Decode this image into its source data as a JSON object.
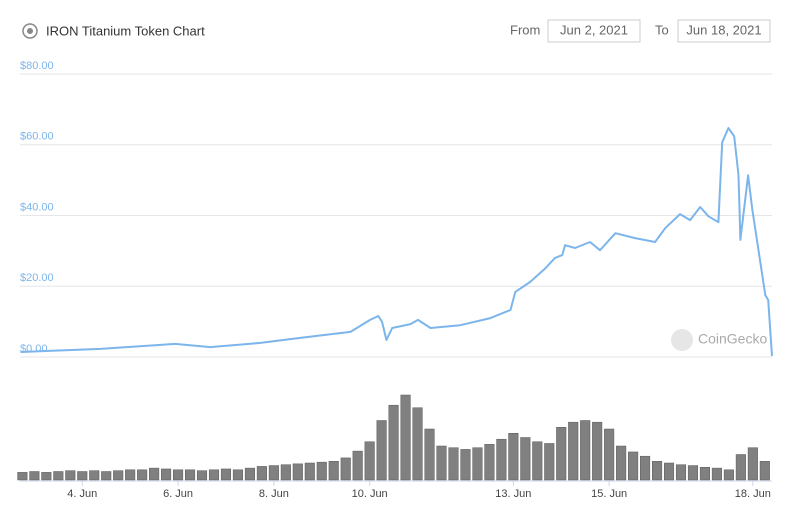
{
  "header": {
    "from_label": "From",
    "from_date": "Jun 2, 2021",
    "to_label": "To",
    "to_date": "Jun 18, 2021"
  },
  "watermark": "CoinGecko",
  "chart_data": [
    {
      "type": "line",
      "title": "IRON Titanium Token Chart",
      "color": "#7cb5ec",
      "grid": true,
      "x": [
        2.71,
        4.38,
        5.94,
        6.67,
        7.72,
        8.55,
        9.6,
        10.01,
        10.18,
        10.26,
        10.35,
        10.47,
        10.85,
        11.01,
        11.27,
        11.89,
        12.52,
        12.94,
        13.04,
        13.35,
        13.67,
        13.87,
        14.02,
        14.08,
        14.29,
        14.6,
        14.81,
        15.13,
        15.54,
        15.96,
        16.17,
        16.48,
        16.69,
        16.9,
        17.07,
        17.28,
        17.36,
        17.49,
        17.61,
        17.7,
        17.74,
        17.9,
        17.99,
        18.15,
        18.26,
        18.32,
        18.4
      ],
      "values": [
        1.4,
        2.3,
        3.7,
        2.8,
        4.0,
        5.4,
        7.1,
        10.5,
        11.6,
        9.9,
        4.8,
        8.2,
        9.3,
        10.5,
        8.2,
        9.0,
        11.0,
        13.3,
        18.4,
        21.2,
        25.1,
        28.0,
        28.8,
        31.6,
        30.8,
        32.5,
        30.2,
        35.0,
        33.6,
        32.5,
        36.4,
        40.4,
        38.7,
        42.4,
        39.8,
        38.1,
        60.7,
        64.7,
        62.4,
        51.4,
        33.1,
        51.4,
        41.5,
        27.4,
        17.5,
        16.1,
        0.3
      ],
      "xlim": [
        2.7,
        18.4
      ],
      "ylim": [
        0,
        80
      ],
      "yticks": [
        {
          "value": 0,
          "label": "$0.00"
        },
        {
          "value": 20,
          "label": "$20.00"
        },
        {
          "value": 40,
          "label": "$40.00"
        },
        {
          "value": 60,
          "label": "$60.00"
        },
        {
          "value": 80,
          "label": "$80.00"
        }
      ]
    },
    {
      "type": "bar",
      "color": "#808080",
      "x": [
        2.75,
        3,
        3.25,
        3.5,
        3.75,
        4,
        4.25,
        4.5,
        4.75,
        5,
        5.25,
        5.5,
        5.75,
        6,
        6.25,
        6.5,
        6.75,
        7,
        7.25,
        7.5,
        7.75,
        8,
        8.25,
        8.5,
        8.75,
        9,
        9.25,
        9.5,
        9.75,
        10,
        10.25,
        10.5,
        10.75,
        11,
        11.25,
        11.5,
        11.75,
        12,
        12.25,
        12.5,
        12.75,
        13,
        13.25,
        13.5,
        13.75,
        14,
        14.25,
        14.5,
        14.75,
        15,
        15.25,
        15.5,
        15.75,
        16,
        16.25,
        16.5,
        16.75,
        17,
        17.25,
        17.5,
        17.75,
        18,
        18.25
      ],
      "values": [
        9,
        10,
        9,
        10,
        11,
        10,
        11,
        10,
        11,
        12,
        12,
        14,
        13,
        12,
        12,
        11,
        12,
        13,
        12,
        14,
        16,
        17,
        18,
        19,
        20,
        21,
        22,
        26,
        34,
        45,
        70,
        88,
        100,
        85,
        60,
        40,
        38,
        36,
        38,
        42,
        48,
        55,
        50,
        45,
        43,
        62,
        68,
        70,
        68,
        60,
        40,
        33,
        28,
        22,
        20,
        18,
        17,
        15,
        14,
        12,
        30,
        38,
        22
      ],
      "xlim": [
        2.7,
        18.4
      ],
      "ylim": [
        0,
        100
      ],
      "xticks": [
        {
          "value": 4,
          "label": "4. Jun"
        },
        {
          "value": 6,
          "label": "6. Jun"
        },
        {
          "value": 8,
          "label": "8. Jun"
        },
        {
          "value": 10,
          "label": "10. Jun"
        },
        {
          "value": 13,
          "label": "13. Jun"
        },
        {
          "value": 15,
          "label": "15. Jun"
        },
        {
          "value": 18,
          "label": "18. Jun"
        }
      ]
    }
  ]
}
